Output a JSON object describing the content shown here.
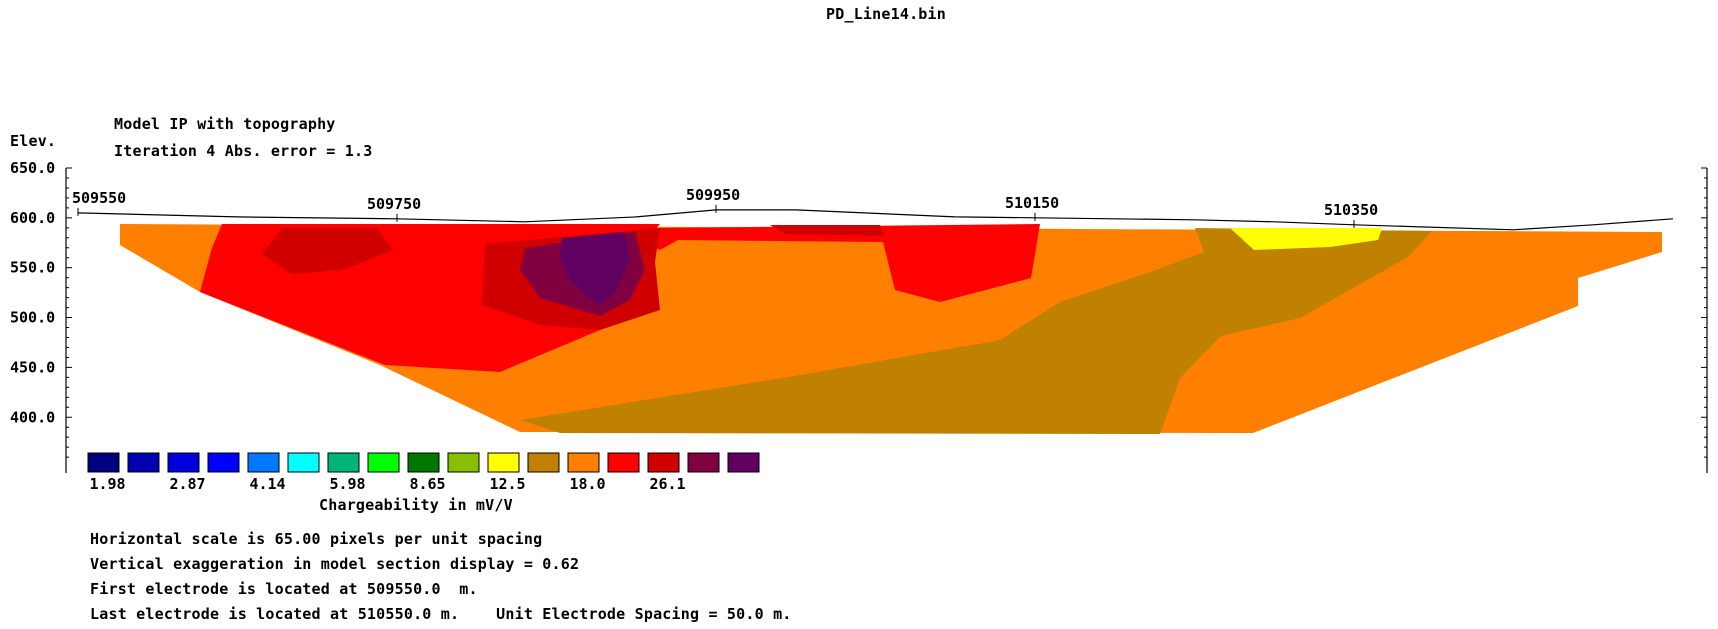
{
  "file_title": "PD_Line14.bin",
  "model_title": "Model IP with topography",
  "iteration_line": "Iteration 4 Abs. error = 1.3",
  "elev_label": "Elev.",
  "chart_data": {
    "type": "heatmap",
    "title": "Model IP with topography",
    "subtitle": "Iteration 4 Abs. error = 1.3",
    "ylabel": "Elev.",
    "y_ticks": [
      "650.0",
      "600.0",
      "550.0",
      "500.0",
      "450.0",
      "400.0"
    ],
    "y_tick_values": [
      650,
      600,
      550,
      500,
      450,
      400
    ],
    "x_ticks": [
      "509550",
      "509750",
      "509950",
      "510150",
      "510350"
    ],
    "x_tick_values": [
      509550,
      509750,
      509950,
      510150,
      510350
    ],
    "xlim": [
      509550,
      510550
    ],
    "ylim": [
      357,
      650
    ],
    "topography": [
      [
        509550,
        605
      ],
      [
        509650,
        601
      ],
      [
        509750,
        599
      ],
      [
        509830,
        596
      ],
      [
        509900,
        601
      ],
      [
        509950,
        608
      ],
      [
        510000,
        608
      ],
      [
        510100,
        601
      ],
      [
        510150,
        600
      ],
      [
        510250,
        598
      ],
      [
        510300,
        596
      ],
      [
        510350,
        593
      ],
      [
        510450,
        588
      ],
      [
        510500,
        593
      ],
      [
        510550,
        599
      ]
    ],
    "legend": {
      "title": "Chargeability in mV/V",
      "labels": [
        "1.98",
        "2.87",
        "4.14",
        "5.98",
        "8.65",
        "12.5",
        "18.0",
        "26.1"
      ],
      "colors": [
        "#000080",
        "#0000b0",
        "#0000dd",
        "#0000ff",
        "#0078ff",
        "#00ffff",
        "#00b478",
        "#00ff00",
        "#007800",
        "#88c000",
        "#ffff00",
        "#c08000",
        "#ff8000",
        "#ff0000",
        "#d00000",
        "#800040",
        "#600060"
      ]
    },
    "zones": [
      {
        "name": "orange",
        "value": "18.0",
        "color": "#ff8000"
      },
      {
        "name": "brown",
        "value": "12.5",
        "color": "#c08000"
      },
      {
        "name": "red",
        "value": "26.1",
        "color": "#ff0000"
      },
      {
        "name": "dark-red",
        "value": "26.1+",
        "color": "#d00000"
      },
      {
        "name": "yellow",
        "value": "12.5-",
        "color": "#ffff00"
      },
      {
        "name": "maroon",
        "color": "#800040"
      },
      {
        "name": "purple",
        "color": "#600060"
      }
    ]
  },
  "info": {
    "line1": "Horizontal scale is 65.00 pixels per unit spacing",
    "line2": "Vertical exaggeration in model section display = 0.62",
    "line3": "First electrode is located at 509550.0  m.",
    "line4": "Last electrode is located at 510550.0 m.    Unit Electrode Spacing = 50.0 m."
  }
}
